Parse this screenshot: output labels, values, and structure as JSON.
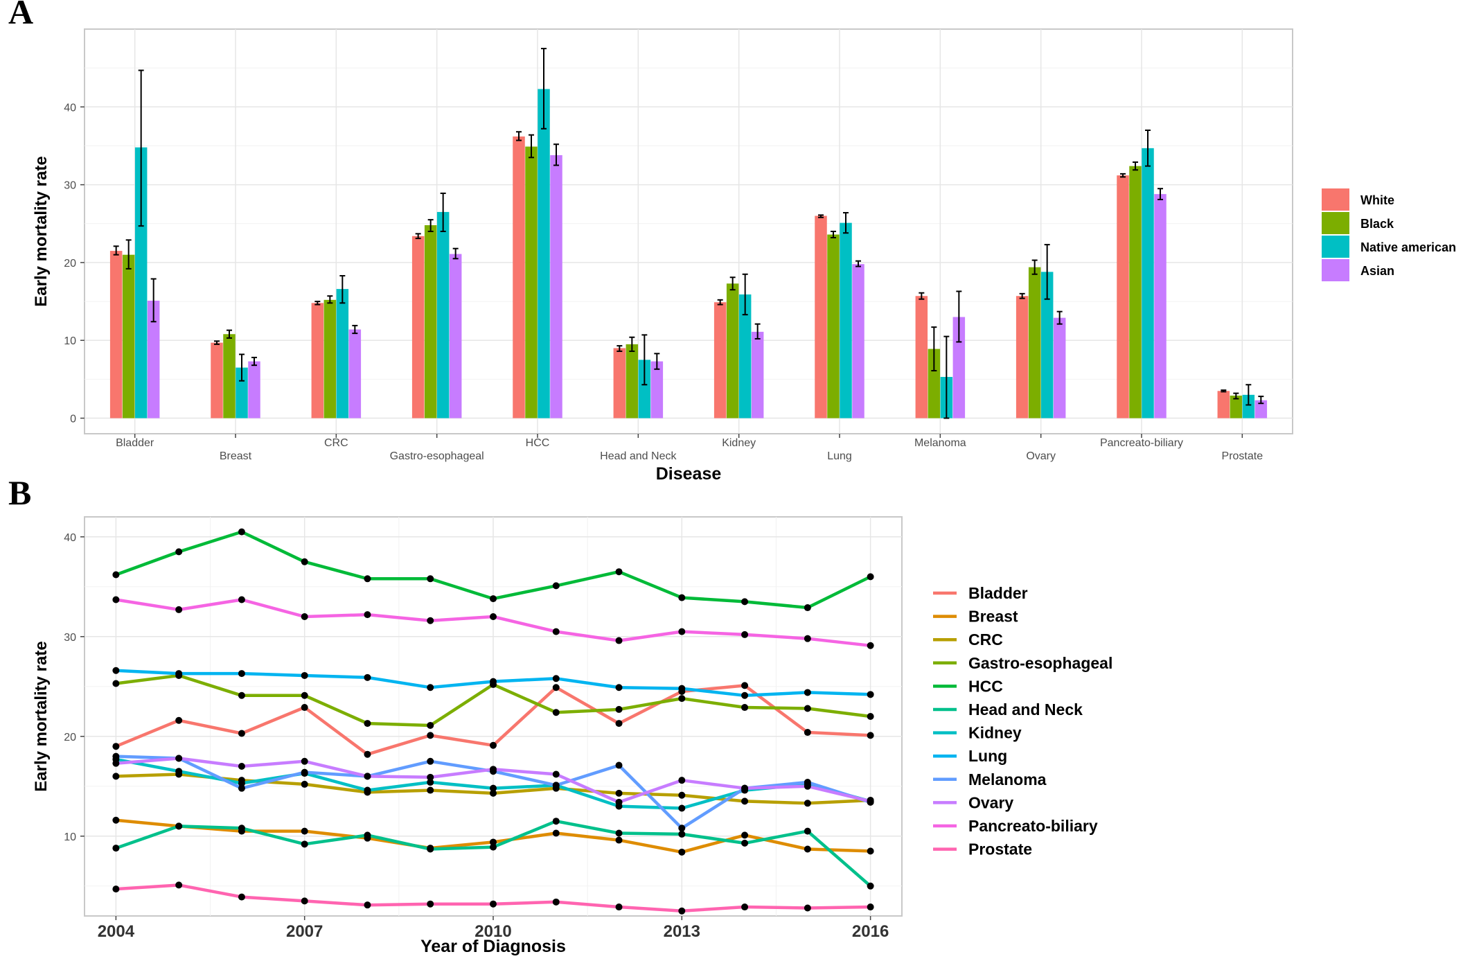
{
  "chart_data": [
    {
      "panel": "A",
      "type": "bar",
      "xlabel": "Disease",
      "ylabel": "Early mortality rate",
      "ylim": [
        -2,
        50
      ],
      "yticks": [
        0,
        10,
        20,
        30,
        40
      ],
      "grid": true,
      "legend_position": "right",
      "categories": [
        "Bladder",
        "Breast",
        "CRC",
        "Gastro-esophageal",
        "HCC",
        "Head and Neck",
        "Kidney",
        "Lung",
        "Melanoma",
        "Ovary",
        "Pancreato-biliary",
        "Prostate"
      ],
      "series": [
        {
          "name": "White",
          "color": "#F8766D",
          "values": [
            21.5,
            9.7,
            14.8,
            23.4,
            36.2,
            9.0,
            14.9,
            26.0,
            15.7,
            15.7,
            31.2,
            3.5
          ],
          "error_low": [
            21.0,
            9.5,
            14.6,
            23.1,
            35.7,
            8.6,
            14.6,
            25.8,
            15.3,
            15.4,
            31.0,
            3.4
          ],
          "error_high": [
            22.1,
            9.9,
            15.0,
            23.7,
            36.8,
            9.3,
            15.2,
            26.1,
            16.1,
            16.0,
            31.4,
            3.6
          ]
        },
        {
          "name": "Black",
          "color": "#7CAE00",
          "values": [
            21.0,
            10.8,
            15.2,
            24.8,
            34.9,
            9.5,
            17.3,
            23.6,
            8.9,
            19.4,
            32.4,
            2.9
          ],
          "error_low": [
            19.2,
            10.3,
            14.8,
            24.0,
            33.5,
            8.6,
            16.5,
            23.2,
            6.1,
            18.5,
            31.9,
            2.5
          ],
          "error_high": [
            22.9,
            11.3,
            15.7,
            25.5,
            36.4,
            10.4,
            18.1,
            24.0,
            11.7,
            20.3,
            32.9,
            3.2
          ]
        },
        {
          "name": "Native american",
          "color": "#00BFC4",
          "values": [
            34.8,
            6.5,
            16.6,
            26.5,
            42.3,
            7.5,
            15.9,
            25.1,
            5.3,
            18.8,
            34.7,
            3.0
          ],
          "error_low": [
            24.7,
            4.8,
            14.8,
            24.0,
            37.2,
            4.3,
            13.3,
            23.8,
            0.0,
            15.3,
            32.4,
            1.7
          ],
          "error_high": [
            44.7,
            8.2,
            18.3,
            28.9,
            47.5,
            10.7,
            18.5,
            26.4,
            10.5,
            22.3,
            37.0,
            4.3
          ]
        },
        {
          "name": "Asian",
          "color": "#C77CFF",
          "values": [
            15.1,
            7.3,
            11.4,
            21.1,
            33.8,
            7.3,
            11.1,
            19.8,
            13.0,
            12.9,
            28.8,
            2.3
          ],
          "error_low": [
            12.4,
            6.8,
            10.9,
            20.5,
            32.5,
            6.3,
            10.2,
            19.5,
            9.8,
            12.1,
            28.1,
            1.9
          ],
          "error_high": [
            17.9,
            7.8,
            11.9,
            21.8,
            35.2,
            8.3,
            12.1,
            20.2,
            16.3,
            13.7,
            29.5,
            2.8
          ]
        }
      ]
    },
    {
      "panel": "B",
      "type": "line",
      "xlabel": "Year of Diagnosis",
      "ylabel": "Early mortality rate",
      "xlim": [
        2003.5,
        2016.5
      ],
      "ylim": [
        2,
        42
      ],
      "xticks": [
        2004,
        2007,
        2010,
        2013,
        2016
      ],
      "yticks": [
        10,
        20,
        30,
        40
      ],
      "grid": true,
      "legend_position": "right",
      "x": [
        2004,
        2005,
        2006,
        2007,
        2008,
        2009,
        2010,
        2011,
        2012,
        2013,
        2014,
        2015,
        2016
      ],
      "series": [
        {
          "name": "Bladder",
          "color": "#F8766D",
          "values": [
            19.0,
            21.6,
            20.3,
            22.9,
            18.2,
            20.1,
            19.1,
            24.9,
            21.3,
            24.5,
            25.1,
            20.4,
            20.1
          ]
        },
        {
          "name": "Breast",
          "color": "#DE8C00",
          "values": [
            11.6,
            11.0,
            10.5,
            10.5,
            9.8,
            8.8,
            9.4,
            10.3,
            9.6,
            8.4,
            10.1,
            8.7,
            8.5
          ]
        },
        {
          "name": "CRC",
          "color": "#B79F00",
          "values": [
            16.0,
            16.2,
            15.6,
            15.2,
            14.4,
            14.6,
            14.3,
            14.8,
            14.3,
            14.1,
            13.5,
            13.3,
            13.6
          ]
        },
        {
          "name": "Gastro-esophageal",
          "color": "#7CAE00",
          "values": [
            25.3,
            26.1,
            24.1,
            24.1,
            21.3,
            21.1,
            25.2,
            22.4,
            22.7,
            23.8,
            22.9,
            22.8,
            22.0
          ]
        },
        {
          "name": "HCC",
          "color": "#00BA38",
          "values": [
            36.2,
            38.5,
            40.5,
            37.5,
            35.8,
            35.8,
            33.8,
            35.1,
            36.5,
            33.9,
            33.5,
            32.9,
            36.0
          ]
        },
        {
          "name": "Head and Neck",
          "color": "#00C08B",
          "values": [
            8.8,
            11.0,
            10.8,
            9.2,
            10.1,
            8.7,
            8.9,
            11.5,
            10.3,
            10.2,
            9.3,
            10.5,
            5.0
          ]
        },
        {
          "name": "Kidney",
          "color": "#00BFC4",
          "values": [
            17.7,
            16.5,
            15.3,
            16.3,
            14.6,
            15.4,
            14.8,
            15.1,
            13.0,
            12.8,
            14.6,
            15.2,
            13.5
          ]
        },
        {
          "name": "Lung",
          "color": "#00B4F0",
          "values": [
            26.6,
            26.3,
            26.3,
            26.1,
            25.9,
            24.9,
            25.5,
            25.8,
            24.9,
            24.8,
            24.1,
            24.4,
            24.2
          ]
        },
        {
          "name": "Melanoma",
          "color": "#619CFF",
          "values": [
            18.0,
            17.8,
            14.8,
            16.4,
            16.0,
            17.5,
            16.5,
            15.1,
            17.1,
            10.8,
            14.8,
            15.4,
            13.4
          ]
        },
        {
          "name": "Ovary",
          "color": "#C77CFF",
          "values": [
            17.3,
            17.8,
            17.0,
            17.5,
            16.0,
            15.9,
            16.7,
            16.2,
            13.4,
            15.6,
            14.8,
            15.0,
            13.5
          ]
        },
        {
          "name": "Pancreato-biliary",
          "color": "#F564E3",
          "values": [
            33.7,
            32.7,
            33.7,
            32.0,
            32.2,
            31.6,
            32.0,
            30.5,
            29.6,
            30.5,
            30.2,
            29.8,
            29.1
          ]
        },
        {
          "name": "Prostate",
          "color": "#FF64B0",
          "values": [
            4.7,
            5.1,
            3.9,
            3.5,
            3.1,
            3.2,
            3.2,
            3.4,
            2.9,
            2.5,
            2.9,
            2.8,
            2.9
          ]
        }
      ]
    }
  ],
  "panel_labels": {
    "a": "A",
    "b": "B"
  }
}
